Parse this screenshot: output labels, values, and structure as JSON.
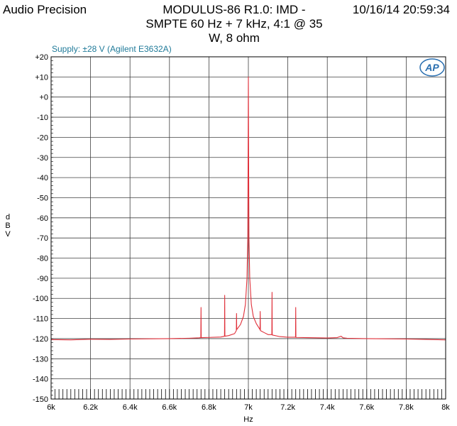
{
  "header": {
    "brand": "Audio Precision",
    "title_lines": [
      "MODULUS-86 R1.0: IMD -",
      "SMPTE 60 Hz + 7 kHz, 4:1 @ 35",
      "W, 8 ohm"
    ],
    "timestamp": "10/16/14 20:59:34"
  },
  "annotation": "Supply: ±28 V (Agilent E3632A)",
  "logo_text": "AP",
  "colors": {
    "trace": "#e0303a",
    "grid": "#404040",
    "annotation": "#1f7a99",
    "logo": "#2a6fb0"
  },
  "chart_data": {
    "type": "line",
    "title": "MODULUS-86 R1.0: IMD - SMPTE 60 Hz + 7 kHz, 4:1 @ 35 W, 8 ohm",
    "xlabel": "Hz",
    "ylabel": "dBV",
    "xlim": [
      6000,
      8000
    ],
    "ylim": [
      -150,
      20
    ],
    "x_ticks": [
      6000,
      6200,
      6400,
      6600,
      6800,
      7000,
      7200,
      7400,
      7600,
      7800,
      8000
    ],
    "x_tick_labels": [
      "6k",
      "6.2k",
      "6.4k",
      "6.6k",
      "6.8k",
      "7k",
      "7.2k",
      "7.4k",
      "7.6k",
      "7.8k",
      "8k"
    ],
    "y_ticks": [
      20,
      10,
      0,
      -10,
      -20,
      -30,
      -40,
      -50,
      -60,
      -70,
      -80,
      -90,
      -100,
      -110,
      -120,
      -130,
      -140,
      -150
    ],
    "y_tick_labels": [
      "+20",
      "+10",
      "+0",
      "-10",
      "-20",
      "-30",
      "-40",
      "-50",
      "-60",
      "-70",
      "-80",
      "-90",
      "-100",
      "-110",
      "-120",
      "-130",
      "-140",
      "-150"
    ],
    "grid": true,
    "series": [
      {
        "points": [
          [
            6000,
            -120.5
          ],
          [
            6100,
            -120.6
          ],
          [
            6200,
            -120.3
          ],
          [
            6300,
            -120.4
          ],
          [
            6400,
            -120.2
          ],
          [
            6500,
            -120.1
          ],
          [
            6600,
            -120.0
          ],
          [
            6700,
            -119.8
          ],
          [
            6750,
            -119.6
          ],
          [
            6759,
            -119.5
          ],
          [
            6760,
            -104.5
          ],
          [
            6761,
            -119.5
          ],
          [
            6800,
            -119.4
          ],
          [
            6860,
            -119.2
          ],
          [
            6879,
            -118.8
          ],
          [
            6880,
            -98.5
          ],
          [
            6881,
            -118.8
          ],
          [
            6900,
            -118.5
          ],
          [
            6930,
            -117.5
          ],
          [
            6939,
            -116.0
          ],
          [
            6940,
            -107.5
          ],
          [
            6941,
            -115.5
          ],
          [
            6960,
            -113.0
          ],
          [
            6975,
            -109.0
          ],
          [
            6985,
            -103.0
          ],
          [
            6993,
            -90.0
          ],
          [
            6997,
            -70.0
          ],
          [
            6999,
            -20.0
          ],
          [
            7000,
            10.0
          ],
          [
            7001,
            -20.0
          ],
          [
            7003,
            -70.0
          ],
          [
            7007,
            -90.0
          ],
          [
            7015,
            -103.0
          ],
          [
            7025,
            -109.0
          ],
          [
            7040,
            -112.5
          ],
          [
            7059,
            -115.5
          ],
          [
            7060,
            -106.5
          ],
          [
            7061,
            -116.0
          ],
          [
            7080,
            -117.0
          ],
          [
            7100,
            -118.0
          ],
          [
            7119,
            -118.0
          ],
          [
            7120,
            -97.0
          ],
          [
            7121,
            -118.2
          ],
          [
            7160,
            -119.0
          ],
          [
            7200,
            -119.3
          ],
          [
            7239,
            -119.3
          ],
          [
            7240,
            -104.5
          ],
          [
            7241,
            -119.4
          ],
          [
            7300,
            -119.5
          ],
          [
            7400,
            -119.7
          ],
          [
            7450,
            -119.5
          ],
          [
            7470,
            -118.8
          ],
          [
            7480,
            -119.6
          ],
          [
            7500,
            -119.8
          ],
          [
            7600,
            -120.0
          ],
          [
            7700,
            -120.1
          ],
          [
            7800,
            -120.2
          ],
          [
            7900,
            -120.4
          ],
          [
            8000,
            -120.6
          ]
        ]
      }
    ]
  }
}
